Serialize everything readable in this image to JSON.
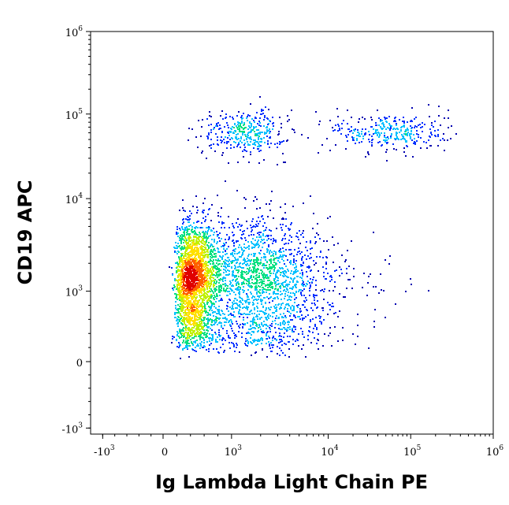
{
  "chart_data": {
    "type": "scatter",
    "style": "flow-cytometry-density-dot-plot",
    "xlabel": "Ig Lambda Light Chain PE",
    "ylabel": "CD19 APC",
    "x_scale": "biexponential",
    "y_scale": "biexponential",
    "xlim": [
      -2000,
      1000000
    ],
    "ylim": [
      -2000,
      1000000
    ],
    "x_ticks": [
      {
        "base": "-10",
        "exp": "3",
        "value": -1000
      },
      {
        "base": "0",
        "exp": "",
        "value": 0
      },
      {
        "base": "10",
        "exp": "3",
        "value": 1000
      },
      {
        "base": "10",
        "exp": "4",
        "value": 10000
      },
      {
        "base": "10",
        "exp": "5",
        "value": 100000
      },
      {
        "base": "10",
        "exp": "6",
        "value": 1000000
      }
    ],
    "y_ticks": [
      {
        "base": "-10",
        "exp": "3",
        "value": -1000
      },
      {
        "base": "0",
        "exp": "",
        "value": 0
      },
      {
        "base": "10",
        "exp": "3",
        "value": 1000
      },
      {
        "base": "10",
        "exp": "4",
        "value": 10000
      },
      {
        "base": "10",
        "exp": "5",
        "value": 100000
      },
      {
        "base": "10",
        "exp": "6",
        "value": 1000000
      }
    ],
    "grid": false,
    "color_scale": [
      "#0000b0",
      "#0030ff",
      "#00c0ff",
      "#00e080",
      "#c0f000",
      "#ffe000",
      "#ff6000",
      "#e00000"
    ],
    "populations": [
      {
        "x_center": 450,
        "y_center": 1300,
        "x_spread": 0.18,
        "y_spread": 0.32,
        "count": 2600,
        "density": "high"
      },
      {
        "x_center": 2000,
        "y_center": 1200,
        "x_spread": 0.28,
        "y_spread": 0.34,
        "count": 1500,
        "density": "medium"
      },
      {
        "x_center": 6000,
        "y_center": 1100,
        "x_spread": 0.3,
        "y_spread": 0.3,
        "count": 220,
        "density": "low"
      },
      {
        "x_center": 1400,
        "y_center": 62000,
        "x_spread": 0.2,
        "y_spread": 0.13,
        "count": 360,
        "density": "low"
      },
      {
        "x_center": 55000,
        "y_center": 62000,
        "x_spread": 0.35,
        "y_spread": 0.12,
        "count": 330,
        "density": "low"
      },
      {
        "x_center": 35000,
        "y_center": 1200,
        "x_spread": 0.3,
        "y_spread": 0.25,
        "count": 30,
        "density": "sparse"
      }
    ]
  }
}
